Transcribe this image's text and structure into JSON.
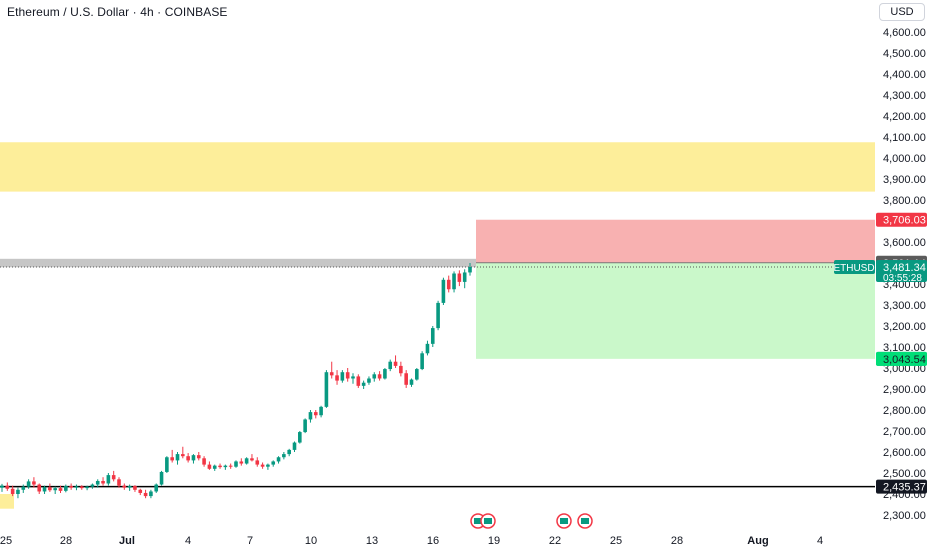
{
  "header": {
    "title": "Ethereum / U.S. Dollar · 4h · COINBASE",
    "currency": "USD"
  },
  "colors": {
    "up": "#089981",
    "down": "#f23645",
    "zone": "#fdeb88",
    "stop": "#f7a9a9",
    "target": "#c7f8c7",
    "resist": "#c6c6c6",
    "support_line": "#000000"
  },
  "chart_data": {
    "type": "candlestick",
    "symbol": "ETHUSD",
    "y_ticks": [
      2300,
      2400,
      2500,
      2600,
      2700,
      2800,
      2900,
      3000,
      3100,
      3200,
      3300,
      3400,
      3500,
      3600,
      3700,
      3800,
      3900,
      4000,
      4100,
      4200,
      4300,
      4400,
      4500,
      4600
    ],
    "y_tick_labels": [
      "2,300.00",
      "2,400.00",
      "2,500.00",
      "2,600.00",
      "2,700.00",
      "2,800.00",
      "2,900.00",
      "3,000.00",
      "3,100.00",
      "3,200.00",
      "3,300.00",
      "3,400.00",
      "3,500.00",
      "3,600.00",
      "3,700.00",
      "3,800.00",
      "3,900.00",
      "4,000.00",
      "4,100.00",
      "4,200.00",
      "4,300.00",
      "4,400.00",
      "4,500.00",
      "4,600.00"
    ],
    "x_tick_labels": [
      "25",
      "28",
      "Jul",
      "4",
      "7",
      "10",
      "13",
      "16",
      "19",
      "22",
      "25",
      "28",
      "Aug",
      "4"
    ],
    "resistance_zone": {
      "low": 3840,
      "high": 4075
    },
    "gray_zone": {
      "low": 3480,
      "high": 3520
    },
    "support_line": 2435.37,
    "position": {
      "stop": 3706.03,
      "entry": 3501.14,
      "target": 3043.54
    },
    "labels": {
      "stop": "3,706.03",
      "entry": "3,501.14",
      "price": "3,481.34",
      "countdown": "03:55:28",
      "target": "3,043.54",
      "support": "2,435.37",
      "symbol": "ETHUSD"
    },
    "ohlc": [
      [
        2430,
        2448,
        2410,
        2440
      ],
      [
        2440,
        2455,
        2415,
        2425
      ],
      [
        2425,
        2440,
        2390,
        2400
      ],
      [
        2400,
        2430,
        2380,
        2420
      ],
      [
        2420,
        2445,
        2405,
        2435
      ],
      [
        2435,
        2470,
        2425,
        2460
      ],
      [
        2460,
        2480,
        2430,
        2445
      ],
      [
        2445,
        2450,
        2400,
        2412
      ],
      [
        2412,
        2440,
        2400,
        2432
      ],
      [
        2432,
        2450,
        2410,
        2418
      ],
      [
        2418,
        2435,
        2400,
        2428
      ],
      [
        2428,
        2440,
        2405,
        2415
      ],
      [
        2415,
        2445,
        2408,
        2438
      ],
      [
        2438,
        2450,
        2420,
        2430
      ],
      [
        2430,
        2445,
        2418,
        2436
      ],
      [
        2436,
        2442,
        2420,
        2428
      ],
      [
        2428,
        2440,
        2418,
        2435
      ],
      [
        2435,
        2450,
        2425,
        2445
      ],
      [
        2445,
        2470,
        2430,
        2462
      ],
      [
        2462,
        2480,
        2440,
        2450
      ],
      [
        2450,
        2500,
        2440,
        2490
      ],
      [
        2490,
        2510,
        2460,
        2470
      ],
      [
        2470,
        2480,
        2430,
        2440
      ],
      [
        2440,
        2450,
        2420,
        2430
      ],
      [
        2430,
        2445,
        2415,
        2438
      ],
      [
        2438,
        2442,
        2410,
        2420
      ],
      [
        2420,
        2425,
        2395,
        2405
      ],
      [
        2405,
        2420,
        2380,
        2390
      ],
      [
        2390,
        2420,
        2380,
        2412
      ],
      [
        2412,
        2450,
        2405,
        2445
      ],
      [
        2445,
        2510,
        2440,
        2505
      ],
      [
        2505,
        2580,
        2500,
        2575
      ],
      [
        2575,
        2610,
        2550,
        2560
      ],
      [
        2560,
        2600,
        2540,
        2590
      ],
      [
        2590,
        2625,
        2570,
        2580
      ],
      [
        2580,
        2595,
        2550,
        2560
      ],
      [
        2560,
        2590,
        2545,
        2585
      ],
      [
        2585,
        2600,
        2560,
        2570
      ],
      [
        2570,
        2580,
        2530,
        2540
      ],
      [
        2540,
        2555,
        2515,
        2520
      ],
      [
        2520,
        2540,
        2510,
        2535
      ],
      [
        2535,
        2545,
        2520,
        2528
      ],
      [
        2528,
        2540,
        2515,
        2535
      ],
      [
        2535,
        2545,
        2520,
        2530
      ],
      [
        2530,
        2560,
        2525,
        2555
      ],
      [
        2555,
        2570,
        2535,
        2545
      ],
      [
        2545,
        2575,
        2540,
        2570
      ],
      [
        2570,
        2590,
        2555,
        2560
      ],
      [
        2560,
        2575,
        2530,
        2540
      ],
      [
        2540,
        2550,
        2520,
        2530
      ],
      [
        2530,
        2545,
        2515,
        2540
      ],
      [
        2540,
        2560,
        2530,
        2555
      ],
      [
        2555,
        2580,
        2545,
        2575
      ],
      [
        2575,
        2600,
        2565,
        2590
      ],
      [
        2590,
        2615,
        2580,
        2610
      ],
      [
        2610,
        2650,
        2600,
        2645
      ],
      [
        2645,
        2700,
        2640,
        2695
      ],
      [
        2695,
        2760,
        2690,
        2755
      ],
      [
        2755,
        2800,
        2740,
        2790
      ],
      [
        2790,
        2800,
        2760,
        2775
      ],
      [
        2775,
        2820,
        2765,
        2815
      ],
      [
        2815,
        2990,
        2810,
        2980
      ],
      [
        2980,
        3030,
        2950,
        2965
      ],
      [
        2965,
        2990,
        2920,
        2940
      ],
      [
        2940,
        2990,
        2930,
        2980
      ],
      [
        2980,
        3000,
        2935,
        2950
      ],
      [
        2950,
        2975,
        2925,
        2960
      ],
      [
        2960,
        2970,
        2905,
        2915
      ],
      [
        2915,
        2940,
        2900,
        2930
      ],
      [
        2930,
        2960,
        2920,
        2950
      ],
      [
        2950,
        2980,
        2935,
        2970
      ],
      [
        2970,
        2985,
        2940,
        2950
      ],
      [
        2950,
        3000,
        2945,
        2995
      ],
      [
        2995,
        3040,
        2985,
        3030
      ],
      [
        3030,
        3060,
        3000,
        3010
      ],
      [
        3010,
        3030,
        2960,
        2975
      ],
      [
        2975,
        2990,
        2905,
        2920
      ],
      [
        2920,
        2950,
        2910,
        2945
      ],
      [
        2945,
        3000,
        2940,
        2995
      ],
      [
        2995,
        3080,
        2990,
        3070
      ],
      [
        3070,
        3130,
        3060,
        3115
      ],
      [
        3115,
        3200,
        3100,
        3190
      ],
      [
        3190,
        3320,
        3180,
        3310
      ],
      [
        3310,
        3430,
        3300,
        3420
      ],
      [
        3420,
        3440,
        3360,
        3375
      ],
      [
        3375,
        3460,
        3360,
        3450
      ],
      [
        3450,
        3465,
        3390,
        3410
      ],
      [
        3410,
        3470,
        3380,
        3455
      ],
      [
        3455,
        3500,
        3440,
        3481
      ]
    ]
  }
}
